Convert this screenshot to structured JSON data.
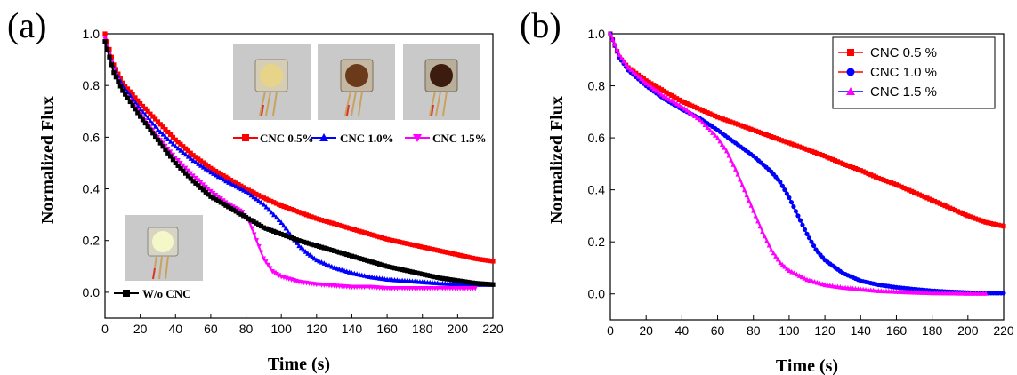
{
  "chart_data": [
    {
      "type": "line",
      "panel_label": "(a)",
      "xlabel": "Time (s)",
      "ylabel": "Normalized Flux",
      "xlim": [
        0,
        220
      ],
      "ylim": [
        -0.1,
        1.0
      ],
      "xticks": [
        0,
        20,
        40,
        60,
        80,
        100,
        120,
        140,
        160,
        180,
        200,
        220
      ],
      "yticks": [
        0.0,
        0.2,
        0.4,
        0.6,
        0.8,
        1.0
      ],
      "grid": false,
      "legend_position": "top-right",
      "series": [
        {
          "name": "CNC 0.5%",
          "color": "#ff0000",
          "marker": "square",
          "x": [
            0,
            5,
            10,
            20,
            30,
            40,
            50,
            60,
            70,
            80,
            90,
            100,
            110,
            120,
            130,
            140,
            150,
            160,
            170,
            180,
            190,
            200,
            210,
            220
          ],
          "y": [
            1.0,
            0.88,
            0.81,
            0.73,
            0.66,
            0.59,
            0.53,
            0.48,
            0.44,
            0.4,
            0.365,
            0.335,
            0.31,
            0.285,
            0.265,
            0.245,
            0.225,
            0.205,
            0.19,
            0.175,
            0.16,
            0.145,
            0.13,
            0.12
          ]
        },
        {
          "name": "CNC 1.0%",
          "color": "#0000ff",
          "marker": "triangle",
          "x": [
            0,
            5,
            10,
            20,
            30,
            40,
            50,
            60,
            70,
            80,
            90,
            100,
            105,
            110,
            115,
            120,
            130,
            140,
            150,
            160,
            170,
            180,
            190,
            200,
            210,
            220
          ],
          "y": [
            0.98,
            0.87,
            0.8,
            0.71,
            0.63,
            0.565,
            0.51,
            0.465,
            0.425,
            0.39,
            0.34,
            0.27,
            0.225,
            0.18,
            0.15,
            0.125,
            0.095,
            0.075,
            0.06,
            0.05,
            0.045,
            0.04,
            0.035,
            0.032,
            0.03,
            0.03
          ]
        },
        {
          "name": "CNC 1.5%",
          "color": "#ff00ff",
          "marker": "triangle-down",
          "x": [
            0,
            5,
            10,
            20,
            30,
            40,
            50,
            60,
            70,
            78,
            82,
            86,
            90,
            95,
            100,
            110,
            120,
            130,
            140,
            150,
            160,
            170,
            180,
            190,
            200,
            210
          ],
          "y": [
            0.98,
            0.86,
            0.78,
            0.69,
            0.6,
            0.52,
            0.45,
            0.39,
            0.34,
            0.31,
            0.27,
            0.2,
            0.13,
            0.08,
            0.06,
            0.04,
            0.03,
            0.025,
            0.02,
            0.02,
            0.015,
            0.015,
            0.015,
            0.015,
            0.015,
            0.015
          ]
        },
        {
          "name": "W/o CNC",
          "color": "#000000",
          "marker": "square",
          "x": [
            0,
            5,
            10,
            20,
            30,
            40,
            50,
            60,
            70,
            80,
            90,
            100,
            110,
            120,
            130,
            140,
            150,
            160,
            170,
            180,
            190,
            200,
            210,
            220
          ],
          "y": [
            0.97,
            0.85,
            0.78,
            0.68,
            0.59,
            0.5,
            0.43,
            0.37,
            0.33,
            0.29,
            0.25,
            0.225,
            0.2,
            0.18,
            0.16,
            0.14,
            0.12,
            0.1,
            0.085,
            0.07,
            0.055,
            0.045,
            0.035,
            0.03
          ]
        }
      ]
    },
    {
      "type": "line",
      "panel_label": "(b)",
      "xlabel": "Time (s)",
      "ylabel": "Normalized Flux",
      "xlim": [
        0,
        220
      ],
      "ylim": [
        -0.1,
        1.0
      ],
      "xticks": [
        0,
        20,
        40,
        60,
        80,
        100,
        120,
        140,
        160,
        180,
        200,
        220
      ],
      "yticks": [
        0.0,
        0.2,
        0.4,
        0.6,
        0.8,
        1.0
      ],
      "grid": false,
      "legend_position": "top-right",
      "series": [
        {
          "name": "CNC 0.5 %",
          "color": "#ff0000",
          "marker": "square",
          "x": [
            0,
            5,
            10,
            20,
            30,
            40,
            50,
            60,
            70,
            80,
            90,
            100,
            110,
            120,
            130,
            140,
            150,
            160,
            170,
            180,
            190,
            200,
            210,
            220
          ],
          "y": [
            1.0,
            0.91,
            0.87,
            0.82,
            0.78,
            0.74,
            0.71,
            0.68,
            0.655,
            0.63,
            0.605,
            0.58,
            0.555,
            0.53,
            0.5,
            0.475,
            0.445,
            0.42,
            0.39,
            0.36,
            0.33,
            0.3,
            0.275,
            0.26
          ]
        },
        {
          "name": "CNC 1.0 %",
          "color": "#0000ff",
          "marker": "circle",
          "x": [
            0,
            5,
            10,
            20,
            30,
            40,
            50,
            60,
            70,
            80,
            90,
            95,
            100,
            105,
            110,
            115,
            120,
            130,
            140,
            150,
            160,
            170,
            180,
            190,
            200,
            210,
            220
          ],
          "y": [
            1.0,
            0.91,
            0.86,
            0.8,
            0.75,
            0.71,
            0.675,
            0.63,
            0.58,
            0.53,
            0.47,
            0.43,
            0.37,
            0.3,
            0.23,
            0.17,
            0.13,
            0.08,
            0.05,
            0.035,
            0.025,
            0.018,
            0.012,
            0.008,
            0.005,
            0.003,
            0.003
          ]
        },
        {
          "name": "CNC 1.5 %",
          "color": "#ff00ff",
          "marker": "triangle",
          "x": [
            0,
            5,
            10,
            20,
            30,
            40,
            50,
            60,
            65,
            70,
            75,
            80,
            85,
            90,
            95,
            100,
            110,
            120,
            130,
            140,
            150,
            160,
            170,
            180,
            190,
            200,
            210
          ],
          "y": [
            1.0,
            0.92,
            0.87,
            0.81,
            0.76,
            0.72,
            0.67,
            0.6,
            0.55,
            0.48,
            0.4,
            0.32,
            0.24,
            0.17,
            0.12,
            0.09,
            0.055,
            0.035,
            0.025,
            0.018,
            0.012,
            0.009,
            0.006,
            0.004,
            0.003,
            0.002,
            0.002
          ]
        }
      ]
    }
  ]
}
